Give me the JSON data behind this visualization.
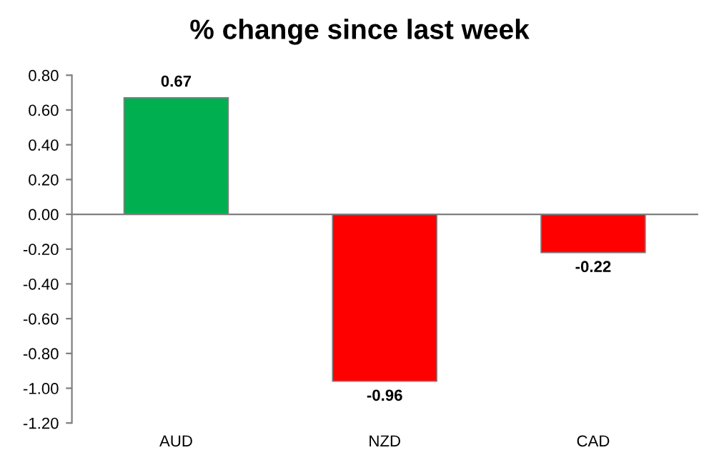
{
  "chart_data": {
    "type": "bar",
    "title": "% change since last week",
    "categories": [
      "AUD",
      "NZD",
      "CAD"
    ],
    "values": [
      0.67,
      -0.96,
      -0.22
    ],
    "colors": [
      "#00b050",
      "#ff0000",
      "#ff0000"
    ],
    "ylim": [
      -1.2,
      0.8
    ],
    "yticks": [
      {
        "value": -1.2,
        "label": "-1.20"
      },
      {
        "value": -1.0,
        "label": "-1.00"
      },
      {
        "value": -0.8,
        "label": "-0.80"
      },
      {
        "value": -0.6,
        "label": "-0.60"
      },
      {
        "value": -0.4,
        "label": "-0.40"
      },
      {
        "value": -0.2,
        "label": "-0.20"
      },
      {
        "value": 0,
        "label": "0.00"
      },
      {
        "value": 0.2,
        "label": "0.20"
      },
      {
        "value": 0.4,
        "label": "0.40"
      },
      {
        "value": 0.6,
        "label": "0.60"
      },
      {
        "value": 0.8,
        "label": "0.80"
      }
    ],
    "data_labels": true
  }
}
